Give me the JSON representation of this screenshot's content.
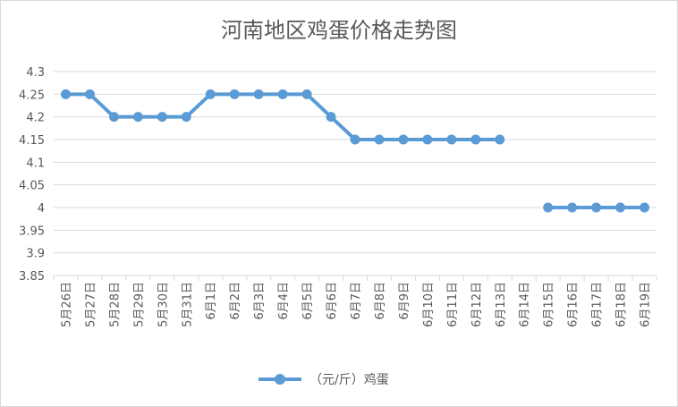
{
  "chart_data": {
    "type": "line",
    "title": "河南地区鸡蛋价格走势图",
    "categories": [
      "5月26日",
      "5月27日",
      "5月28日",
      "5月29日",
      "5月30日",
      "5月31日",
      "6月1日",
      "6月2日",
      "6月3日",
      "6月4日",
      "6月5日",
      "6月6日",
      "6月7日",
      "6月8日",
      "6月9日",
      "6月10日",
      "6月11日",
      "6月12日",
      "6月13日",
      "6月14日",
      "6月15日",
      "6月16日",
      "6月17日",
      "6月18日",
      "6月19日"
    ],
    "series": [
      {
        "name": "（元/斤）鸡蛋",
        "values": [
          4.25,
          4.25,
          4.2,
          4.2,
          4.2,
          4.2,
          4.25,
          4.25,
          4.25,
          4.25,
          4.25,
          4.2,
          4.15,
          4.15,
          4.15,
          4.15,
          4.15,
          4.15,
          4.15,
          null,
          4.0,
          4.0,
          4.0,
          4.0,
          4.0
        ]
      }
    ],
    "y_ticks": [
      "3.85",
      "3.9",
      "3.95",
      "4",
      "4.05",
      "4.1",
      "4.15",
      "4.2",
      "4.25",
      "4.3"
    ],
    "ylim": [
      3.85,
      4.3
    ],
    "grid": true,
    "legend_position": "bottom",
    "colors": {
      "series": "#5b9bd5",
      "grid": "#d9d9d9",
      "text": "#595959"
    }
  }
}
